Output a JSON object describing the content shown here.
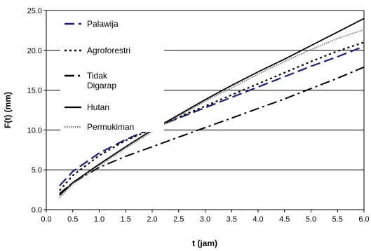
{
  "chart_data": {
    "type": "line",
    "title": "",
    "xlabel": "t  (jam)",
    "ylabel": "F(t) (mm)",
    "xlim": [
      0.0,
      6.0
    ],
    "ylim": [
      0.0,
      25.0
    ],
    "x_ticks": [
      "0.0",
      "0.5",
      "1.0",
      "1.5",
      "2.0",
      "2.5",
      "3.0",
      "3.5",
      "4.0",
      "4.5",
      "5.0",
      "5.5",
      "6.0"
    ],
    "y_ticks": [
      "0.0",
      "5.0",
      "10.0",
      "15.0",
      "20.0",
      "25.0"
    ],
    "grid": "horizontal",
    "legend_position": "top-left",
    "x": [
      0.25,
      0.5,
      1.0,
      1.5,
      2.0,
      2.5,
      3.0,
      3.5,
      4.0,
      4.5,
      5.0,
      5.5,
      6.0
    ],
    "series": [
      {
        "name": "Palawija",
        "color": "#1f1f7a",
        "dash": "long-dash",
        "values": [
          3.0,
          4.8,
          7.1,
          8.8,
          10.2,
          11.5,
          12.8,
          14.1,
          15.4,
          16.7,
          18.0,
          19.2,
          20.5
        ]
      },
      {
        "name": "Agroforestri",
        "color": "#000000",
        "dash": "dotted",
        "values": [
          2.4,
          4.3,
          6.8,
          8.7,
          10.1,
          11.6,
          13.0,
          14.4,
          15.8,
          17.2,
          18.6,
          19.9,
          21.0
        ]
      },
      {
        "name": "Tidak Digarap",
        "color": "#000000",
        "dash": "dash-dot",
        "values": [
          2.0,
          3.4,
          5.3,
          6.7,
          7.9,
          9.1,
          10.3,
          11.5,
          12.7,
          13.9,
          15.2,
          16.5,
          17.9
        ]
      },
      {
        "name": "Hutan",
        "color": "#000000",
        "dash": "solid",
        "values": [
          1.8,
          3.4,
          5.7,
          7.9,
          10.0,
          11.9,
          13.8,
          15.6,
          17.3,
          18.9,
          20.6,
          22.3,
          24.0
        ]
      },
      {
        "name": "Permukiman",
        "color": "#777777",
        "dash": "fine-dotted",
        "values": [
          1.5,
          3.2,
          5.5,
          7.7,
          9.8,
          11.7,
          13.6,
          15.3,
          17.0,
          18.6,
          20.1,
          21.5,
          22.6
        ]
      }
    ]
  }
}
